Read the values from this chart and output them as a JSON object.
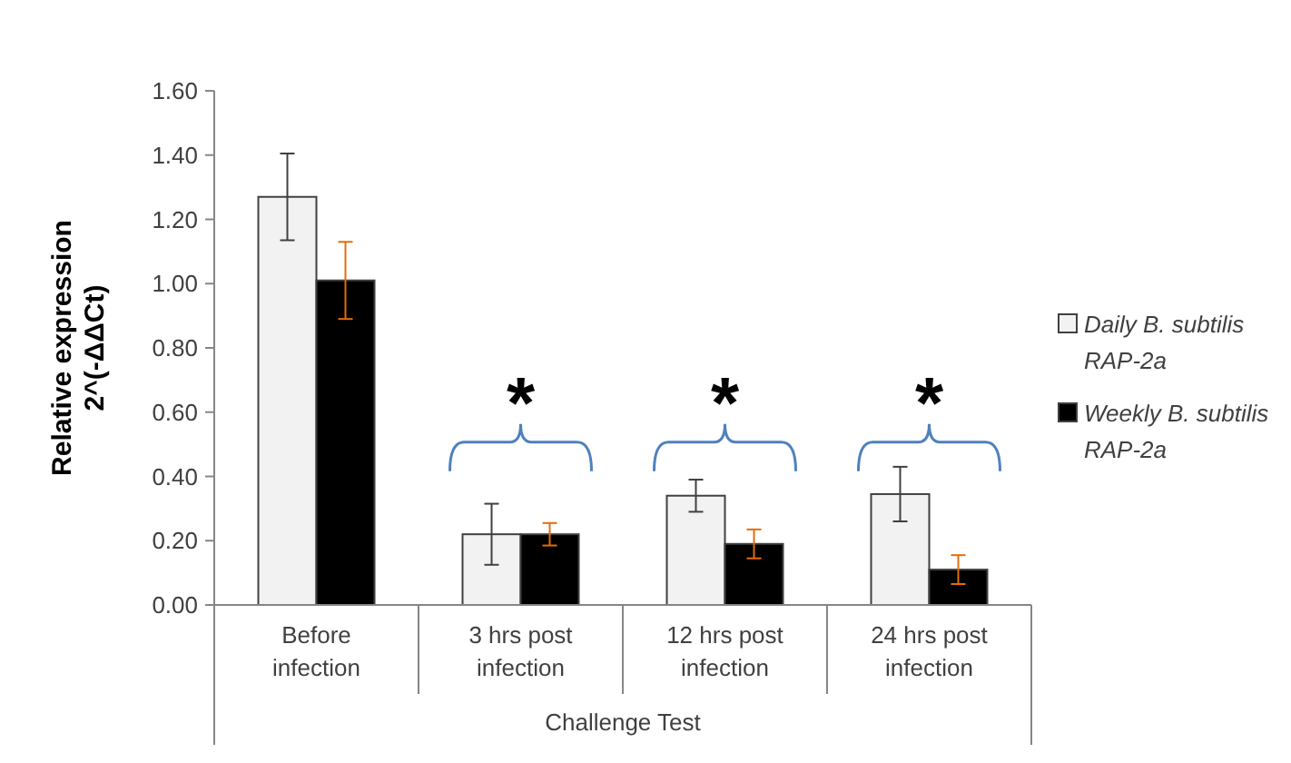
{
  "chart_data": {
    "type": "bar",
    "ylabel": "Relative expression\n2^(-ΔΔCt)",
    "xlabel": "Challenge Test",
    "categories": [
      "Before infection",
      "3 hrs post infection",
      "12 hrs post infection",
      "24 hrs post infection"
    ],
    "series": [
      {
        "name": "Daily B. subtilis RAP-2a",
        "color": "#f2f2f2",
        "values": [
          1.27,
          0.22,
          0.34,
          0.345
        ],
        "errors": [
          0.135,
          0.095,
          0.05,
          0.085
        ]
      },
      {
        "name": "Weekly B. subtilis RAP-2a",
        "color": "#000000",
        "values": [
          1.01,
          0.22,
          0.19,
          0.11
        ],
        "errors": [
          0.12,
          0.035,
          0.045,
          0.045
        ]
      }
    ],
    "ylim": [
      0,
      1.6
    ],
    "yticks": [
      {
        "value": 0,
        "label": "0.00"
      },
      {
        "value": 0.2,
        "label": "0.20"
      },
      {
        "value": 0.4,
        "label": "0.40"
      },
      {
        "value": 0.6,
        "label": "0.60"
      },
      {
        "value": 0.8,
        "label": "0.80"
      },
      {
        "value": 1,
        "label": "1.00"
      },
      {
        "value": 1.2,
        "label": "1.20"
      },
      {
        "value": 1.4,
        "label": "1.40"
      },
      {
        "value": 1.6,
        "label": "1.60"
      }
    ],
    "annotations": [
      "*",
      "*",
      "*"
    ],
    "grid": false,
    "legend": "right"
  }
}
